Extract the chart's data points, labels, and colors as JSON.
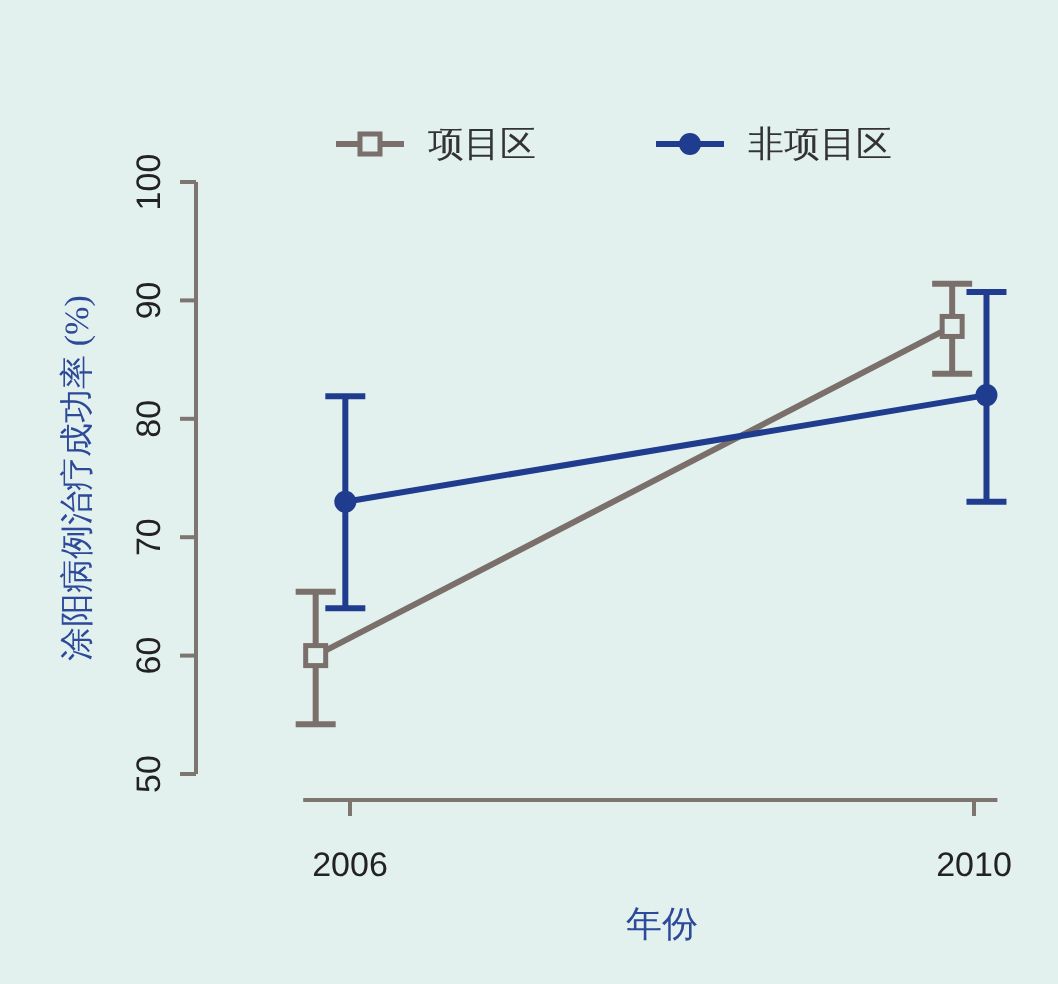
{
  "chart_data": {
    "type": "line",
    "xlabel": "年份",
    "ylabel": "涂阳病例治疗成功率 (%)",
    "xlim": [
      2005.7,
      2010.15
    ],
    "xticks": [
      2006,
      2010
    ],
    "ylim": [
      50,
      100
    ],
    "yticks": [
      50,
      60,
      70,
      80,
      90,
      100
    ],
    "legend": "top",
    "grid": false,
    "series": [
      {
        "name": "项目区",
        "color": "#7a6f6a",
        "marker": "square",
        "x": [
          2005.78,
          2009.86
        ],
        "values": [
          60,
          87.8
        ],
        "errors": [
          [
            54.2,
            65.4
          ],
          [
            83.8,
            91.4
          ]
        ]
      },
      {
        "name": "非项目区",
        "color": "#1f3c8f",
        "marker": "circle",
        "x": [
          2005.97,
          2010.08
        ],
        "values": [
          73,
          82
        ],
        "errors": [
          [
            64,
            81.9
          ],
          [
            73,
            90.7
          ]
        ]
      }
    ]
  }
}
